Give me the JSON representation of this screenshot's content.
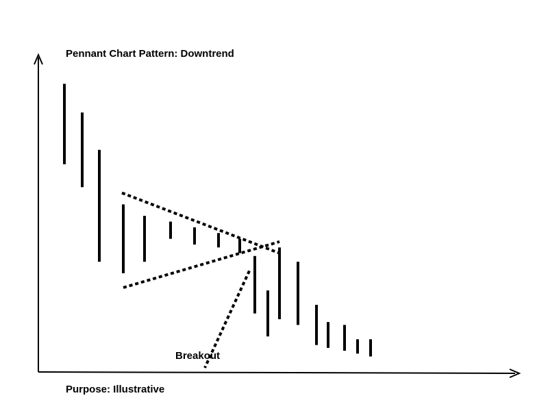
{
  "chart_data": {
    "type": "bar",
    "title": "Pennant Chart Pattern: Downtrend",
    "footer": "Purpose: Illustrative",
    "annotation": "Breakout",
    "axes": {
      "ticks": false,
      "grid": false,
      "arrows": true
    },
    "bars_description": "Price range bars (low-high) drawn as vertical strokes, in chart units (0 = bottom, 100 = top)",
    "bars": [
      {
        "high": 98,
        "low": 70
      },
      {
        "high": 88,
        "low": 62
      },
      {
        "high": 75,
        "low": 36
      },
      {
        "high": 56,
        "low": 32
      },
      {
        "high": 52,
        "low": 36
      },
      {
        "high": 50,
        "low": 44
      },
      {
        "high": 48,
        "low": 42
      },
      {
        "high": 46,
        "low": 41
      },
      {
        "high": 44,
        "low": 39
      },
      {
        "high": 38,
        "low": 18
      },
      {
        "high": 26,
        "low": 10
      },
      {
        "high": 41,
        "low": 16
      },
      {
        "high": 36,
        "low": 14
      },
      {
        "high": 21,
        "low": 7
      },
      {
        "high": 15,
        "low": 6
      },
      {
        "high": 14,
        "low": 5
      },
      {
        "high": 9,
        "low": 4
      },
      {
        "high": 9,
        "low": 3
      }
    ],
    "pennant": {
      "upper": [
        {
          "bar": 3,
          "value": 60
        },
        {
          "bar": 9,
          "value": 39
        }
      ],
      "lower": [
        {
          "bar": 3,
          "value": 27
        },
        {
          "bar": 9,
          "value": 43
        }
      ]
    },
    "breakout_line": [
      {
        "bar": 9,
        "value": 40
      },
      {
        "bar": 7,
        "value": 11
      }
    ]
  }
}
